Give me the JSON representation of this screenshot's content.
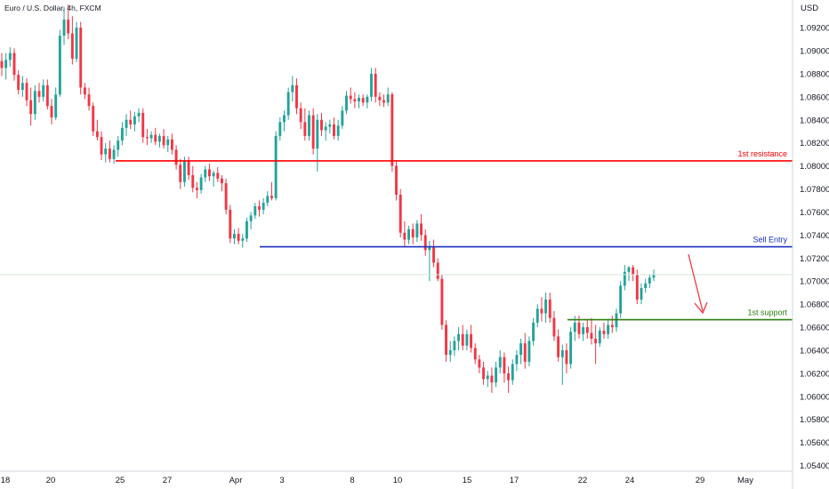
{
  "title": "Euro / U.S. Dollar, 4h, FXCM",
  "currency": "USD",
  "chart_data": {
    "type": "candlestick",
    "title": "Euro / U.S. Dollar, 4h, FXCM",
    "ylim": [
      1.0535,
      1.0944
    ],
    "y_ticks": [
      "1.09200",
      "1.09000",
      "1.08800",
      "1.08600",
      "1.08400",
      "1.08200",
      "1.08000",
      "1.07800",
      "1.07600",
      "1.07400",
      "1.07200",
      "1.07000",
      "1.06800",
      "1.06600",
      "1.06400",
      "1.06200",
      "1.06000",
      "1.05800",
      "1.05600",
      "1.05400"
    ],
    "x_ticks": [
      "18",
      "20",
      "25",
      "27",
      "Apr",
      "3",
      "8",
      "10",
      "15",
      "17",
      "22",
      "24",
      "29",
      "May"
    ],
    "colors": {
      "up": "#22a39a",
      "down": "#f23645",
      "resistance": "#ff0000",
      "entry": "#1a2fbf",
      "support": "#2e7d10",
      "arrow": "#f23645"
    },
    "current_price": 1.07056,
    "levels": [
      {
        "name": "1st resistance",
        "value": "1.08044",
        "color": "#ff0000"
      },
      {
        "name": "Sell Entry",
        "value": "1.07298",
        "color": "#1a2fbf"
      },
      {
        "name": "1st support",
        "value": "1.06665",
        "color": "#2e7d10"
      }
    ],
    "candles": [
      [
        1.0891,
        1.0898,
        1.0878,
        1.0885
      ],
      [
        1.0885,
        1.0898,
        1.0875,
        1.0892
      ],
      [
        1.0892,
        1.0903,
        1.0886,
        1.0898
      ],
      [
        1.0898,
        1.0902,
        1.0874,
        1.0879
      ],
      [
        1.0879,
        1.0883,
        1.0862,
        1.0866
      ],
      [
        1.0866,
        1.0878,
        1.086,
        1.0872
      ],
      [
        1.0872,
        1.0876,
        1.0852,
        1.0857
      ],
      [
        1.0857,
        1.0868,
        1.0835,
        1.0845
      ],
      [
        1.0845,
        1.087,
        1.084,
        1.0865
      ],
      [
        1.0865,
        1.0872,
        1.0855,
        1.086
      ],
      [
        1.086,
        1.0875,
        1.0856,
        1.087
      ],
      [
        1.087,
        1.0875,
        1.0849,
        1.0852
      ],
      [
        1.0852,
        1.0858,
        1.0836,
        1.0842
      ],
      [
        1.0842,
        1.0868,
        1.084,
        1.0862
      ],
      [
        1.0862,
        1.0918,
        1.086,
        1.0913
      ],
      [
        1.0913,
        1.0938,
        1.0905,
        1.0927
      ],
      [
        1.0927,
        1.094,
        1.091,
        1.0915
      ],
      [
        1.0915,
        1.093,
        1.0888,
        1.0893
      ],
      [
        1.0893,
        1.0925,
        1.089,
        1.092
      ],
      [
        1.092,
        1.0925,
        1.0862,
        1.0868
      ],
      [
        1.0868,
        1.0872,
        1.0858,
        1.0862
      ],
      [
        1.0862,
        1.0868,
        1.0848,
        1.0852
      ],
      [
        1.0852,
        1.0855,
        1.0826,
        1.083
      ],
      [
        1.083,
        1.084,
        1.0822,
        1.0825
      ],
      [
        1.0825,
        1.083,
        1.0805,
        1.081
      ],
      [
        1.081,
        1.082,
        1.0803,
        1.0815
      ],
      [
        1.0815,
        1.0822,
        1.0803,
        1.0806
      ],
      [
        1.0806,
        1.0818,
        1.0802,
        1.0814
      ],
      [
        1.0814,
        1.0826,
        1.0808,
        1.0822
      ],
      [
        1.0822,
        1.0838,
        1.0818,
        1.0833
      ],
      [
        1.0833,
        1.0845,
        1.0826,
        1.084
      ],
      [
        1.084,
        1.0848,
        1.0832,
        1.0836
      ],
      [
        1.0836,
        1.0847,
        1.083,
        1.0843
      ],
      [
        1.0843,
        1.085,
        1.0838,
        1.0846
      ],
      [
        1.0846,
        1.085,
        1.082,
        1.0825
      ],
      [
        1.0825,
        1.0832,
        1.0818,
        1.0824
      ],
      [
        1.0824,
        1.083,
        1.082,
        1.0827
      ],
      [
        1.0827,
        1.0833,
        1.0818,
        1.0821
      ],
      [
        1.0821,
        1.0828,
        1.0816,
        1.0826
      ],
      [
        1.0826,
        1.0832,
        1.0815,
        1.0818
      ],
      [
        1.0818,
        1.0826,
        1.0812,
        1.0823
      ],
      [
        1.0823,
        1.0828,
        1.081,
        1.0814
      ],
      [
        1.0814,
        1.0818,
        1.0797,
        1.0801
      ],
      [
        1.0801,
        1.0806,
        1.078,
        1.0786
      ],
      [
        1.0786,
        1.0808,
        1.0782,
        1.0804
      ],
      [
        1.0804,
        1.0808,
        1.0788,
        1.0792
      ],
      [
        1.0792,
        1.08,
        1.0777,
        1.0781
      ],
      [
        1.0781,
        1.0786,
        1.0772,
        1.0779
      ],
      [
        1.0779,
        1.0793,
        1.0776,
        1.079
      ],
      [
        1.079,
        1.08,
        1.0786,
        1.0797
      ],
      [
        1.0797,
        1.0802,
        1.0787,
        1.0791
      ],
      [
        1.0791,
        1.0796,
        1.0782,
        1.0794
      ],
      [
        1.0794,
        1.0799,
        1.0786,
        1.0789
      ],
      [
        1.0789,
        1.0792,
        1.0778,
        1.0785
      ],
      [
        1.0785,
        1.0789,
        1.0758,
        1.0762
      ],
      [
        1.0762,
        1.0766,
        1.0733,
        1.0737
      ],
      [
        1.0737,
        1.0745,
        1.0732,
        1.0741
      ],
      [
        1.0741,
        1.0746,
        1.0732,
        1.0735
      ],
      [
        1.0735,
        1.0741,
        1.0729,
        1.0737
      ],
      [
        1.0737,
        1.0755,
        1.0734,
        1.0752
      ],
      [
        1.0752,
        1.076,
        1.0745,
        1.0757
      ],
      [
        1.0757,
        1.0768,
        1.0754,
        1.0765
      ],
      [
        1.0765,
        1.077,
        1.0756,
        1.0762
      ],
      [
        1.0762,
        1.0772,
        1.0758,
        1.0768
      ],
      [
        1.0768,
        1.0778,
        1.0765,
        1.0774
      ],
      [
        1.0774,
        1.0786,
        1.077,
        1.0772
      ],
      [
        1.0772,
        1.083,
        1.077,
        1.0826
      ],
      [
        1.0826,
        1.0842,
        1.0822,
        1.0838
      ],
      [
        1.0838,
        1.0848,
        1.083,
        1.0844
      ],
      [
        1.0844,
        1.0868,
        1.084,
        1.0864
      ],
      [
        1.0864,
        1.0878,
        1.0856,
        1.087
      ],
      [
        1.087,
        1.0876,
        1.0845,
        1.085
      ],
      [
        1.085,
        1.0855,
        1.0832,
        1.0838
      ],
      [
        1.0838,
        1.085,
        1.0822,
        1.0826
      ],
      [
        1.0826,
        1.0848,
        1.0822,
        1.0844
      ],
      [
        1.0844,
        1.085,
        1.081,
        1.0815
      ],
      [
        1.0815,
        1.0845,
        1.0795,
        1.084
      ],
      [
        1.084,
        1.0846,
        1.0826,
        1.0831
      ],
      [
        1.0831,
        1.0838,
        1.0822,
        1.0834
      ],
      [
        1.0834,
        1.084,
        1.0828,
        1.0836
      ],
      [
        1.0836,
        1.0842,
        1.0823,
        1.0826
      ],
      [
        1.0826,
        1.084,
        1.0822,
        1.0835
      ],
      [
        1.0835,
        1.0852,
        1.0832,
        1.0848
      ],
      [
        1.0848,
        1.0865,
        1.0845,
        1.0861
      ],
      [
        1.0861,
        1.0868,
        1.0854,
        1.0858
      ],
      [
        1.0858,
        1.0864,
        1.085,
        1.0856
      ],
      [
        1.0856,
        1.0862,
        1.085,
        1.0859
      ],
      [
        1.0859,
        1.0862,
        1.0852,
        1.0855
      ],
      [
        1.0855,
        1.0862,
        1.085,
        1.086
      ],
      [
        1.086,
        1.0885,
        1.0856,
        1.088
      ],
      [
        1.088,
        1.0885,
        1.0855,
        1.086
      ],
      [
        1.086,
        1.0864,
        1.0852,
        1.0857
      ],
      [
        1.0857,
        1.0862,
        1.0851,
        1.0855
      ],
      [
        1.0855,
        1.0868,
        1.0852,
        1.0862
      ],
      [
        1.0862,
        1.0864,
        1.0795,
        1.08
      ],
      [
        1.08,
        1.0805,
        1.077,
        1.0775
      ],
      [
        1.0775,
        1.078,
        1.0738,
        1.0742
      ],
      [
        1.0742,
        1.0752,
        1.073,
        1.0736
      ],
      [
        1.0736,
        1.0748,
        1.0732,
        1.0745
      ],
      [
        1.0745,
        1.075,
        1.0732,
        1.0738
      ],
      [
        1.0738,
        1.0753,
        1.0734,
        1.075
      ],
      [
        1.075,
        1.0758,
        1.0735,
        1.074
      ],
      [
        1.074,
        1.0745,
        1.0722,
        1.0727
      ],
      [
        1.0727,
        1.0735,
        1.07,
        1.073
      ],
      [
        1.073,
        1.0736,
        1.0712,
        1.0716
      ],
      [
        1.0716,
        1.072,
        1.07,
        1.0702
      ],
      [
        1.0702,
        1.0706,
        1.0658,
        1.0662
      ],
      [
        1.0662,
        1.0666,
        1.063,
        1.0636
      ],
      [
        1.0636,
        1.0648,
        1.063,
        1.064
      ],
      [
        1.064,
        1.0652,
        1.0635,
        1.0648
      ],
      [
        1.0648,
        1.066,
        1.064,
        1.0654
      ],
      [
        1.0654,
        1.0662,
        1.064,
        1.0644
      ],
      [
        1.0644,
        1.0658,
        1.064,
        1.0654
      ],
      [
        1.0654,
        1.0662,
        1.0638,
        1.0642
      ],
      [
        1.0642,
        1.0646,
        1.0628,
        1.0632
      ],
      [
        1.0632,
        1.0636,
        1.062,
        1.0625
      ],
      [
        1.0625,
        1.063,
        1.061,
        1.0615
      ],
      [
        1.0615,
        1.0622,
        1.0608,
        1.0618
      ],
      [
        1.0618,
        1.0625,
        1.0603,
        1.0612
      ],
      [
        1.0612,
        1.063,
        1.0608,
        1.0625
      ],
      [
        1.0625,
        1.064,
        1.062,
        1.0634
      ],
      [
        1.0634,
        1.0638,
        1.0612,
        1.062
      ],
      [
        1.062,
        1.0626,
        1.0603,
        1.0614
      ],
      [
        1.0614,
        1.0632,
        1.061,
        1.0628
      ],
      [
        1.0628,
        1.064,
        1.0622,
        1.0636
      ],
      [
        1.0636,
        1.065,
        1.0628,
        1.0646
      ],
      [
        1.0646,
        1.0655,
        1.0624,
        1.063
      ],
      [
        1.063,
        1.0652,
        1.0626,
        1.0648
      ],
      [
        1.0648,
        1.0668,
        1.0644,
        1.0664
      ],
      [
        1.0664,
        1.068,
        1.066,
        1.0676
      ],
      [
        1.0676,
        1.0686,
        1.0665,
        1.0672
      ],
      [
        1.0672,
        1.069,
        1.0664,
        1.0684
      ],
      [
        1.0684,
        1.069,
        1.0664,
        1.0668
      ],
      [
        1.0668,
        1.0674,
        1.0648,
        1.0652
      ],
      [
        1.0652,
        1.0658,
        1.063,
        1.0634
      ],
      [
        1.0634,
        1.0645,
        1.061,
        1.064
      ],
      [
        1.064,
        1.0646,
        1.062,
        1.0628
      ],
      [
        1.0628,
        1.066,
        1.0624,
        1.0656
      ],
      [
        1.0656,
        1.067,
        1.0648,
        1.0664
      ],
      [
        1.0664,
        1.067,
        1.065,
        1.0654
      ],
      [
        1.0654,
        1.0664,
        1.0648,
        1.066
      ],
      [
        1.066,
        1.0666,
        1.065,
        1.0655
      ],
      [
        1.0655,
        1.0668,
        1.0645,
        1.065
      ],
      [
        1.065,
        1.0662,
        1.0628,
        1.0646
      ],
      [
        1.0646,
        1.066,
        1.0643,
        1.0657
      ],
      [
        1.0657,
        1.0664,
        1.065,
        1.0654
      ],
      [
        1.0654,
        1.0666,
        1.065,
        1.0662
      ],
      [
        1.0662,
        1.067,
        1.0655,
        1.066
      ],
      [
        1.066,
        1.0676,
        1.0656,
        1.0672
      ],
      [
        1.0672,
        1.07,
        1.0668,
        1.0696
      ],
      [
        1.0696,
        1.0714,
        1.0692,
        1.0708
      ],
      [
        1.0708,
        1.0713,
        1.07,
        1.0712
      ],
      [
        1.0712,
        1.0714,
        1.07,
        1.0706
      ],
      [
        1.0706,
        1.071,
        1.068,
        1.0684
      ],
      [
        1.0684,
        1.0698,
        1.068,
        1.0694
      ],
      [
        1.0694,
        1.0702,
        1.069,
        1.0698
      ],
      [
        1.0698,
        1.0706,
        1.0694,
        1.0703
      ],
      [
        1.0703,
        1.071,
        1.07,
        1.0706
      ]
    ]
  }
}
